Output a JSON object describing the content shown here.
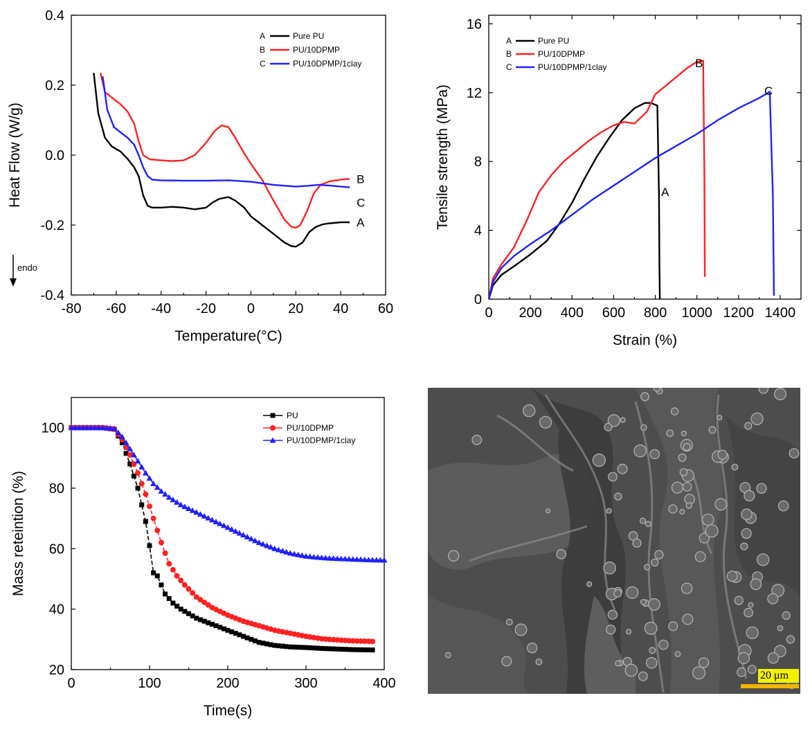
{
  "chart_data": [
    {
      "id": "dsc",
      "type": "line",
      "xlabel": "Temperature(°C)",
      "ylabel": "Heat Flow (W/g)",
      "xlim": [
        -80,
        60
      ],
      "ylim": [
        -0.4,
        0.4
      ],
      "xticks": [
        -80,
        -60,
        -40,
        -20,
        0,
        20,
        40,
        60
      ],
      "yticks": [
        -0.4,
        -0.2,
        0.0,
        0.2,
        0.4
      ],
      "ytick_labels": [
        "-0.4",
        "-0.2",
        "0.0",
        "0.2",
        "0.4"
      ],
      "annotation": "endo",
      "legend_position": "top-right",
      "series": [
        {
          "name": "Pure PU",
          "letter": "A",
          "color": "#000000",
          "x": [
            -70,
            -68,
            -65,
            -62,
            -58,
            -55,
            -52,
            -50,
            -48,
            -46,
            -44,
            -40,
            -35,
            -30,
            -25,
            -20,
            -17,
            -14,
            -10,
            -7,
            -3,
            0,
            5,
            10,
            15,
            18,
            20,
            23,
            26,
            29,
            32,
            35,
            40,
            44
          ],
          "y": [
            0.235,
            0.12,
            0.05,
            0.025,
            0.01,
            -0.01,
            -0.035,
            -0.06,
            -0.115,
            -0.145,
            -0.15,
            -0.15,
            -0.148,
            -0.15,
            -0.155,
            -0.15,
            -0.135,
            -0.125,
            -0.12,
            -0.13,
            -0.15,
            -0.175,
            -0.2,
            -0.225,
            -0.25,
            -0.26,
            -0.262,
            -0.25,
            -0.22,
            -0.205,
            -0.198,
            -0.195,
            -0.192,
            -0.192
          ]
        },
        {
          "name": "PU/10DPMP",
          "letter": "B",
          "color": "#ff2020",
          "x": [
            -67,
            -65,
            -62,
            -58,
            -55,
            -52,
            -50,
            -48,
            -45,
            -40,
            -35,
            -30,
            -25,
            -20,
            -16,
            -13,
            -10,
            -7,
            -3,
            0,
            5,
            10,
            15,
            18,
            20,
            22,
            25,
            28,
            31,
            35,
            40,
            44
          ],
          "y": [
            0.235,
            0.18,
            0.165,
            0.145,
            0.125,
            0.09,
            0.04,
            0.0,
            -0.012,
            -0.015,
            -0.017,
            -0.015,
            0.0,
            0.035,
            0.07,
            0.085,
            0.08,
            0.05,
            0.005,
            -0.025,
            -0.07,
            -0.13,
            -0.185,
            -0.205,
            -0.208,
            -0.2,
            -0.16,
            -0.11,
            -0.085,
            -0.075,
            -0.07,
            -0.068
          ]
        },
        {
          "name": "PU/10DPMP/1clay",
          "letter": "C",
          "color": "#2020ff",
          "x": [
            -66,
            -64,
            -61,
            -58,
            -55,
            -52,
            -50,
            -48,
            -46,
            -44,
            -40,
            -30,
            -20,
            -10,
            0,
            10,
            20,
            25,
            30,
            35,
            40,
            44
          ],
          "y": [
            0.225,
            0.13,
            0.08,
            0.065,
            0.05,
            0.03,
            0.0,
            -0.035,
            -0.06,
            -0.07,
            -0.072,
            -0.073,
            -0.073,
            -0.072,
            -0.076,
            -0.085,
            -0.09,
            -0.088,
            -0.085,
            -0.087,
            -0.09,
            -0.092
          ]
        }
      ]
    },
    {
      "id": "tensile",
      "type": "line",
      "xlabel": "Strain (%)",
      "ylabel": "Tensile strength (MPa)",
      "xlim": [
        0,
        1500
      ],
      "ylim": [
        0,
        16.5
      ],
      "xticks": [
        0,
        200,
        400,
        600,
        800,
        1000,
        1200,
        1400
      ],
      "yticks": [
        0,
        4,
        8,
        12,
        16
      ],
      "legend_position": "top-left",
      "series": [
        {
          "name": "Pure PU",
          "letter": "A",
          "color": "#000000",
          "x": [
            0,
            20,
            60,
            120,
            200,
            280,
            340,
            400,
            460,
            520,
            580,
            640,
            700,
            750,
            780,
            810,
            818,
            820,
            822
          ],
          "y": [
            0,
            0.8,
            1.4,
            1.9,
            2.6,
            3.4,
            4.4,
            5.6,
            7.0,
            8.3,
            9.4,
            10.4,
            11.1,
            11.4,
            11.4,
            11.25,
            6.0,
            2.0,
            0
          ]
        },
        {
          "name": "PU/10DPMP",
          "letter": "B",
          "color": "#ff2020",
          "x": [
            0,
            20,
            60,
            120,
            180,
            240,
            300,
            360,
            420,
            480,
            540,
            600,
            650,
            700,
            760,
            800,
            850,
            900,
            950,
            1000,
            1030,
            1036,
            1038
          ],
          "y": [
            0,
            1.2,
            2.0,
            3.0,
            4.5,
            6.2,
            7.2,
            8.0,
            8.6,
            9.2,
            9.7,
            10.1,
            10.3,
            10.2,
            10.9,
            11.9,
            12.4,
            12.9,
            13.4,
            13.8,
            13.85,
            7.0,
            1.3
          ]
        },
        {
          "name": "PU/10DPMP/1clay",
          "letter": "C",
          "color": "#2020ff",
          "x": [
            0,
            20,
            60,
            120,
            200,
            300,
            400,
            500,
            600,
            700,
            800,
            900,
            1000,
            1100,
            1200,
            1300,
            1350,
            1365,
            1370
          ],
          "y": [
            0,
            1.0,
            1.8,
            2.5,
            3.2,
            4.0,
            4.9,
            5.8,
            6.6,
            7.4,
            8.2,
            8.9,
            9.6,
            10.4,
            11.1,
            11.7,
            12.05,
            6.0,
            0.2
          ]
        }
      ]
    },
    {
      "id": "mass",
      "type": "line",
      "xlabel": "Time(s)",
      "ylabel": "Mass reteintion (%)",
      "xlim": [
        0,
        400
      ],
      "ylim": [
        20,
        110
      ],
      "xticks": [
        0,
        100,
        200,
        300,
        400
      ],
      "yticks": [
        20,
        40,
        60,
        80,
        100
      ],
      "legend_position": "top-right",
      "series": [
        {
          "name": "PU",
          "color": "#000000",
          "marker": "square",
          "x": [
            0,
            40,
            55,
            65,
            75,
            85,
            95,
            100,
            105,
            110,
            120,
            130,
            140,
            160,
            180,
            200,
            220,
            240,
            260,
            280,
            300,
            320,
            340,
            360,
            385
          ],
          "y": [
            100,
            100,
            99.5,
            95,
            88,
            80,
            69,
            61,
            52,
            51,
            45,
            42,
            40,
            37,
            35,
            33,
            31,
            29,
            28,
            27.5,
            27.3,
            27,
            26.8,
            26.6,
            26.5
          ]
        },
        {
          "name": "PU/10DPMP",
          "color": "#ff2020",
          "marker": "circle",
          "x": [
            0,
            40,
            55,
            65,
            75,
            85,
            95,
            105,
            115,
            125,
            135,
            145,
            160,
            180,
            200,
            220,
            240,
            260,
            280,
            300,
            320,
            340,
            360,
            385
          ],
          "y": [
            100,
            100,
            99.5,
            96,
            91,
            85,
            78,
            70,
            62,
            55,
            51,
            48,
            44,
            40.5,
            38,
            36,
            34.5,
            33,
            32,
            31,
            30.2,
            29.8,
            29.5,
            29.3
          ]
        },
        {
          "name": "PU/10DPMP/1clay",
          "color": "#2020ff",
          "marker": "triangle",
          "x": [
            0,
            40,
            55,
            65,
            75,
            85,
            95,
            105,
            115,
            125,
            140,
            160,
            180,
            200,
            220,
            240,
            260,
            280,
            300,
            320,
            340,
            360,
            380,
            400
          ],
          "y": [
            100,
            100,
            99.7,
            97,
            93,
            89,
            85,
            81.5,
            79,
            77,
            74.5,
            72,
            69.5,
            67,
            64.5,
            62,
            60,
            58.5,
            57.5,
            57,
            56.7,
            56.5,
            56.3,
            56.2
          ]
        }
      ]
    }
  ],
  "sem_image": {
    "scale_label": "20 μm",
    "bar_color": "#f2b400",
    "label_bg": "#f2f200"
  }
}
